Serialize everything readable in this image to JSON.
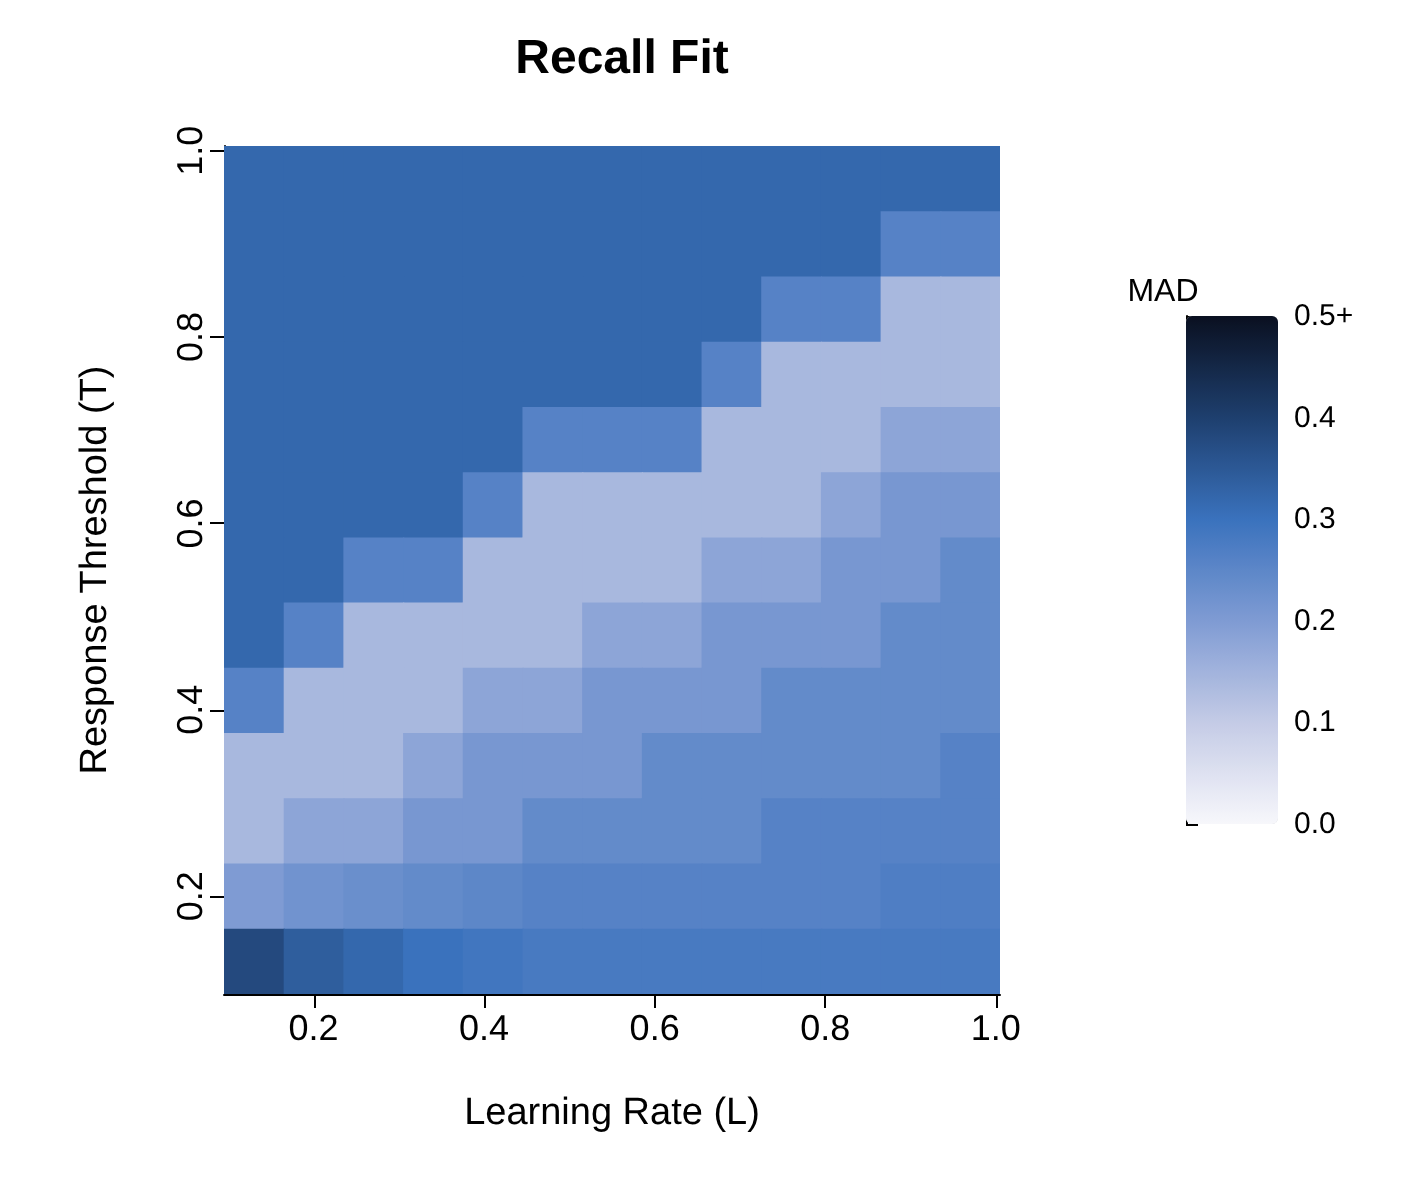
{
  "chart_data": {
    "type": "heatmap",
    "title": "Recall Fit",
    "xlabel": "Learning Rate (L)",
    "ylabel": "Response Threshold (T)",
    "clabel": "MAD",
    "xlim": [
      0.095,
      1.005
    ],
    "ylim": [
      0.095,
      1.005
    ],
    "xticks": [
      0.2,
      0.4,
      0.6,
      0.8,
      {
        "value": 1,
        "label": "1.0"
      }
    ],
    "yticks": [
      0.2,
      0.4,
      0.6,
      0.8,
      {
        "value": 1,
        "label": "1.0"
      }
    ],
    "clim": [
      0,
      0.5
    ],
    "cticks": [
      {
        "value": 0,
        "label": "0.0"
      },
      0.1,
      0.2,
      0.3,
      0.4,
      {
        "value": 0.5,
        "label": "0.5+"
      }
    ],
    "cells": [
      [
        0.32,
        0.32,
        0.32,
        0.32,
        0.32,
        0.32,
        0.32,
        0.32,
        0.32,
        0.32,
        0.32,
        0.32,
        0.32
      ],
      [
        0.32,
        0.32,
        0.32,
        0.32,
        0.32,
        0.32,
        0.32,
        0.32,
        0.32,
        0.32,
        0.32,
        0.26,
        0.26
      ],
      [
        0.32,
        0.32,
        0.32,
        0.32,
        0.32,
        0.32,
        0.32,
        0.32,
        0.32,
        0.26,
        0.26,
        0.14,
        0.14
      ],
      [
        0.32,
        0.32,
        0.32,
        0.32,
        0.32,
        0.32,
        0.32,
        0.32,
        0.26,
        0.14,
        0.14,
        0.14,
        0.14
      ],
      [
        0.32,
        0.32,
        0.32,
        0.32,
        0.32,
        0.26,
        0.26,
        0.26,
        0.14,
        0.14,
        0.14,
        0.18,
        0.18
      ],
      [
        0.32,
        0.32,
        0.32,
        0.32,
        0.26,
        0.14,
        0.14,
        0.14,
        0.14,
        0.14,
        0.18,
        0.21,
        0.21
      ],
      [
        0.32,
        0.32,
        0.26,
        0.26,
        0.14,
        0.14,
        0.14,
        0.14,
        0.18,
        0.18,
        0.21,
        0.21,
        0.24
      ],
      [
        0.32,
        0.26,
        0.14,
        0.14,
        0.14,
        0.14,
        0.18,
        0.18,
        0.21,
        0.21,
        0.21,
        0.24,
        0.24
      ],
      [
        0.26,
        0.14,
        0.14,
        0.14,
        0.18,
        0.18,
        0.21,
        0.21,
        0.21,
        0.24,
        0.24,
        0.24,
        0.24
      ],
      [
        0.14,
        0.14,
        0.14,
        0.18,
        0.21,
        0.21,
        0.21,
        0.24,
        0.24,
        0.24,
        0.24,
        0.24,
        0.26
      ],
      [
        0.14,
        0.18,
        0.18,
        0.21,
        0.21,
        0.24,
        0.24,
        0.24,
        0.24,
        0.26,
        0.26,
        0.26,
        0.26
      ],
      [
        0.2,
        0.22,
        0.23,
        0.24,
        0.25,
        0.26,
        0.26,
        0.26,
        0.26,
        0.26,
        0.26,
        0.27,
        0.27
      ],
      [
        0.38,
        0.34,
        0.32,
        0.3,
        0.29,
        0.28,
        0.28,
        0.28,
        0.28,
        0.28,
        0.28,
        0.28,
        0.28
      ]
    ]
  }
}
